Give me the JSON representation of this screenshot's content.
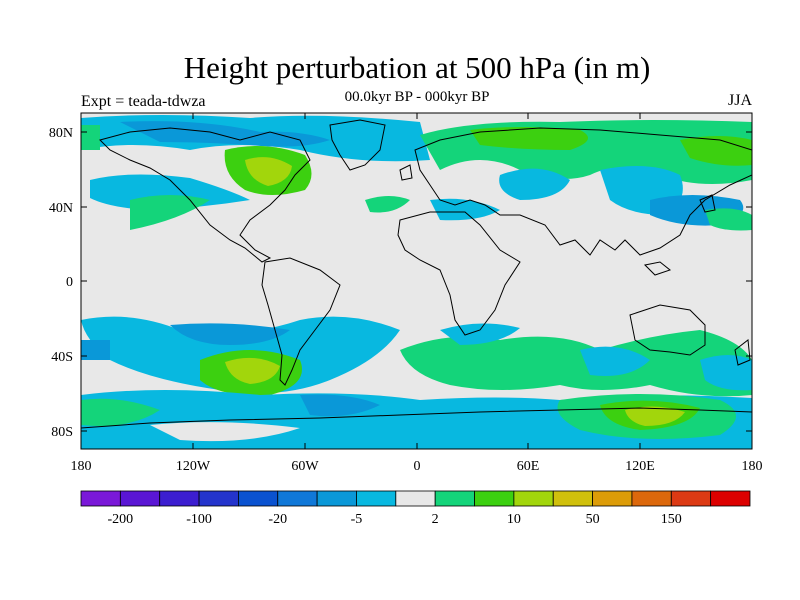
{
  "title": "Height perturbation at 500 hPa (in m)",
  "subtitle": "00.0kyr BP - 000kyr BP",
  "left_label": "Expt = teada-tdwza",
  "right_label": "JJA",
  "lat_labels": [
    "80N",
    "40N",
    "0",
    "40S",
    "80S"
  ],
  "lon_labels": [
    "180",
    "120W",
    "60W",
    "0",
    "60E",
    "120E",
    "180"
  ],
  "colorbar": {
    "colors": [
      "#7a18d8",
      "#5a16d4",
      "#3c1ed0",
      "#2434cc",
      "#0a52d0",
      "#1078d8",
      "#0a98d8",
      "#08b8e0",
      "#e8e8e8",
      "#14d47a",
      "#3cd010",
      "#a2d60c",
      "#d0c00c",
      "#dc9c08",
      "#dc680c",
      "#dc3a14",
      "#dc0000"
    ],
    "labels": [
      "-200",
      "-100",
      "-20",
      "-5",
      "2",
      "10",
      "50",
      "150"
    ]
  }
}
